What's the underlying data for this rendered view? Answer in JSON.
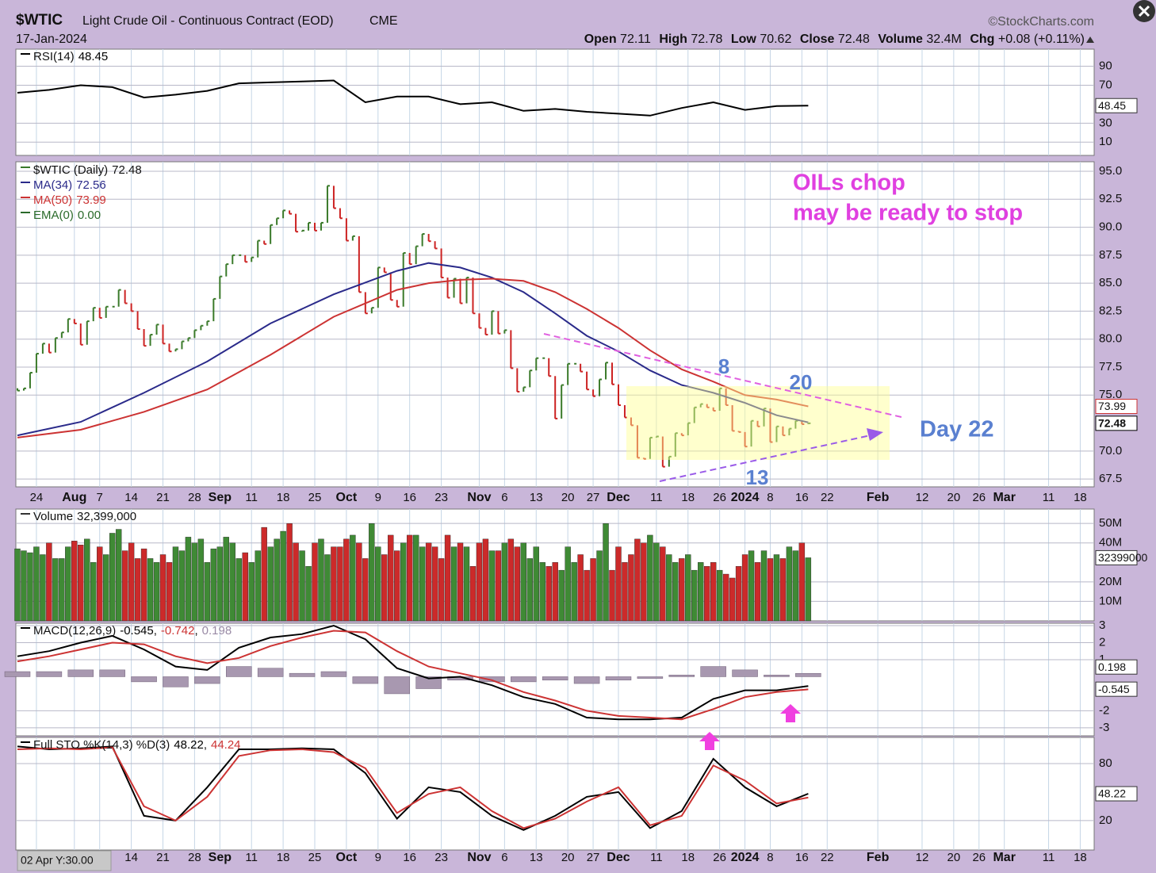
{
  "header": {
    "symbol": "$WTIC",
    "name": "Light Crude Oil - Continuous Contract (EOD)",
    "exchange": "CME",
    "date": "17-Jan-2024",
    "source": "©StockCharts.com",
    "open_label": "Open",
    "open": 72.11,
    "high_label": "High",
    "high": 72.78,
    "low_label": "Low",
    "low": 70.62,
    "close_label": "Close",
    "close": 72.48,
    "volume_label": "Volume",
    "volume": "32.4M",
    "chg_label": "Chg",
    "chg": "+0.08 (+0.11%)"
  },
  "footer": "02 Apr Y:30.00",
  "chart_data": [
    {
      "type": "line",
      "legend": "RSI(14)",
      "ylim": [
        -4,
        108
      ],
      "yticks": [
        90,
        70,
        30,
        10
      ],
      "x": [
        0,
        5,
        10,
        15,
        20,
        25,
        30,
        35,
        40,
        45,
        50,
        55,
        60,
        65,
        70,
        75,
        80,
        85,
        90,
        95,
        100,
        105,
        110,
        115,
        120,
        125
      ],
      "series": [
        {
          "color": "#000000",
          "values": [
            62,
            65,
            70,
            68,
            57,
            60,
            64,
            72,
            73,
            74,
            75,
            52,
            58,
            58,
            50,
            52,
            43,
            45,
            42,
            40,
            38,
            46,
            52,
            44,
            48,
            48.45
          ]
        }
      ]
    },
    {
      "type": "price",
      "legend": "$WTIC (Daily)",
      "ylim": [
        66.8,
        95.85
      ],
      "yticks": [
        {
          "value": 95,
          "label": "95.0"
        },
        {
          "value": 92.5,
          "label": "92.5"
        },
        {
          "value": 90,
          "label": "90.0"
        },
        {
          "value": 87.5,
          "label": "87.5"
        },
        {
          "value": 85,
          "label": "85.0"
        },
        {
          "value": 82.5,
          "label": "82.5"
        },
        {
          "value": 80,
          "label": "80.0"
        },
        {
          "value": 77.5,
          "label": "77.5"
        },
        {
          "value": 75,
          "label": "75.0"
        },
        {
          "value": 70,
          "label": "70.0"
        },
        {
          "value": 67.5,
          "label": "67.5"
        }
      ],
      "xlim": [
        -0.25,
        170.2
      ],
      "xticks": [
        {
          "value": 3,
          "label": "24"
        },
        {
          "value": 9,
          "label": "Aug"
        },
        {
          "value": 13,
          "label": "7"
        },
        {
          "value": 18,
          "label": "14"
        },
        {
          "value": 23,
          "label": "21"
        },
        {
          "value": 28,
          "label": "28"
        },
        {
          "value": 32,
          "label": "Sep"
        },
        {
          "value": 37,
          "label": "11"
        },
        {
          "value": 42,
          "label": "18"
        },
        {
          "value": 47,
          "label": "25"
        },
        {
          "value": 52,
          "label": "Oct"
        },
        {
          "value": 57,
          "label": "9"
        },
        {
          "value": 62,
          "label": "16"
        },
        {
          "value": 67,
          "label": "23"
        },
        {
          "value": 73,
          "label": "Nov"
        },
        {
          "value": 77,
          "label": "6"
        },
        {
          "value": 82,
          "label": "13"
        },
        {
          "value": 87,
          "label": "20"
        },
        {
          "value": 91,
          "label": "27"
        },
        {
          "value": 95,
          "label": "Dec"
        },
        {
          "value": 101,
          "label": "11"
        },
        {
          "value": 106,
          "label": "18"
        },
        {
          "value": 111,
          "label": "26"
        },
        {
          "value": 115,
          "label": "2024"
        },
        {
          "value": 119,
          "label": "8"
        },
        {
          "value": 124,
          "label": "16"
        },
        {
          "value": 128,
          "label": "22"
        },
        {
          "value": 136,
          "label": "Feb"
        },
        {
          "value": 143,
          "label": "12"
        },
        {
          "value": 148,
          "label": "20"
        },
        {
          "value": 152,
          "label": "26"
        },
        {
          "value": 156,
          "label": "Mar"
        },
        {
          "value": 163,
          "label": "11"
        },
        {
          "value": 168,
          "label": "18"
        }
      ],
      "close": {
        "name": "$WTIC (Daily)",
        "up_color": "#3a7a2a",
        "down_color": "#cc2222",
        "values": [
          75.4,
          75.6,
          77.0,
          78.7,
          79.6,
          78.8,
          80.1,
          80.6,
          81.8,
          81.4,
          79.5,
          81.6,
          82.8,
          81.9,
          82.9,
          82.9,
          84.4,
          83.2,
          82.5,
          80.9,
          79.4,
          80.4,
          81.3,
          79.6,
          78.9,
          79.1,
          79.8,
          80.1,
          80.8,
          81.2,
          81.6,
          83.6,
          85.6,
          86.7,
          87.5,
          87.5,
          86.9,
          87.3,
          88.8,
          88.5,
          90.2,
          90.8,
          91.5,
          91.2,
          89.6,
          89.7,
          90.4,
          89.7,
          90.4,
          93.7,
          91.7,
          90.8,
          88.8,
          89.2,
          84.2,
          82.3,
          82.8,
          86.4,
          85.97,
          83.5,
          82.9,
          87.7,
          86.7,
          88.3,
          89.4,
          88.75,
          88.1,
          85.5,
          83.7,
          85.4,
          83.2,
          85.5,
          82.3,
          81.0,
          80.4,
          82.5,
          80.5,
          80.8,
          77.4,
          75.3,
          75.7,
          77.2,
          78.3,
          78.3,
          76.7,
          72.9,
          75.9,
          77.8,
          77.8,
          77.1,
          75.5,
          74.9,
          76.4,
          77.9,
          75.96,
          74.1,
          73.0,
          72.3,
          69.4,
          69.3,
          71.2,
          71.3,
          68.6,
          69.5,
          71.6,
          71.4,
          72.5,
          73.9,
          74.2,
          73.9,
          73.6,
          75.6,
          74.1,
          71.8,
          71.7,
          70.4,
          72.7,
          72.2,
          73.8,
          70.8,
          72.2,
          71.4,
          72.0,
          72.7,
          72.4,
          72.48
        ]
      },
      "series": [
        {
          "name": "MA(34)",
          "color": "#2a2a8a",
          "x": [
            0,
            10,
            20,
            30,
            40,
            50,
            60,
            65,
            70,
            75,
            80,
            85,
            90,
            95,
            100,
            105,
            110,
            115,
            120,
            125
          ],
          "values": [
            71.4,
            72.6,
            75.2,
            78.0,
            81.4,
            84.0,
            86.1,
            86.8,
            86.4,
            85.5,
            84.2,
            82.3,
            80.3,
            78.9,
            77.2,
            75.9,
            75.2,
            74.3,
            73.2,
            72.56
          ]
        },
        {
          "name": "MA(50)",
          "color": "#cc3333",
          "x": [
            0,
            10,
            20,
            30,
            40,
            50,
            60,
            65,
            70,
            75,
            80,
            85,
            90,
            95,
            100,
            105,
            110,
            115,
            120,
            125
          ],
          "values": [
            71.2,
            71.9,
            73.5,
            75.5,
            78.6,
            82.0,
            84.4,
            85.0,
            85.3,
            85.4,
            85.2,
            84.2,
            82.7,
            81.0,
            79.0,
            77.3,
            76.2,
            75.0,
            74.6,
            73.99
          ]
        }
      ],
      "ema": {
        "name": "EMA(0)",
        "label": "0.00",
        "color": "#2a6a2a"
      },
      "annotations": [
        "OILs chop",
        "may be ready to stop",
        "8",
        "20",
        "13",
        "Day 22"
      ]
    },
    {
      "type": "bar",
      "legend": "Volume",
      "legend_value": "32,399,000",
      "box_label": "32399000",
      "ylim": [
        0,
        57.4
      ],
      "yticks": [
        {
          "value": 50,
          "label": "50M"
        },
        {
          "value": 40,
          "label": "40M"
        },
        {
          "value": 20,
          "label": "20M"
        },
        {
          "value": 10,
          "label": "10M"
        }
      ],
      "values": [
        37,
        36,
        35,
        38,
        34,
        40,
        32,
        32,
        38,
        41,
        39,
        42,
        30,
        38,
        34,
        45,
        47,
        36,
        40,
        32,
        37,
        32,
        30,
        34,
        30,
        38,
        36,
        43,
        40,
        42,
        30,
        37,
        38,
        43,
        40,
        32,
        35,
        30,
        36,
        48,
        38,
        42,
        46,
        50,
        40,
        36,
        28,
        40,
        42,
        34,
        38,
        38,
        42,
        44,
        40,
        32,
        50,
        38,
        34,
        44,
        36,
        40,
        44,
        44,
        38,
        40,
        38,
        32,
        44,
        38,
        40,
        38,
        28,
        40,
        42,
        36,
        36,
        40,
        42,
        38,
        40,
        32,
        38,
        30,
        28,
        30,
        26,
        38,
        30,
        34,
        26,
        32,
        36,
        50,
        26,
        38,
        30,
        34,
        42,
        40,
        44,
        40,
        38,
        34,
        30,
        32,
        34,
        26,
        30,
        28,
        30,
        26,
        24,
        22,
        28,
        34,
        36,
        30,
        36,
        32,
        34,
        32,
        38,
        36,
        40,
        32.399
      ]
    },
    {
      "type": "macd",
      "legend": "MACD(12,26,9)",
      "ylim": [
        -3.47,
        3.14
      ],
      "yticks": [
        3,
        2,
        1,
        -2,
        -3
      ],
      "x": [
        0,
        5,
        10,
        15,
        20,
        25,
        30,
        35,
        40,
        45,
        50,
        55,
        60,
        65,
        70,
        75,
        80,
        85,
        90,
        95,
        100,
        105,
        110,
        115,
        120,
        125
      ],
      "series": [
        {
          "color": "#000000",
          "values": [
            1.2,
            1.5,
            2.0,
            2.4,
            1.6,
            0.6,
            0.4,
            1.7,
            2.3,
            2.5,
            3.0,
            2.2,
            0.5,
            -0.1,
            0.0,
            -0.5,
            -1.2,
            -1.6,
            -2.4,
            -2.5,
            -2.5,
            -2.4,
            -1.3,
            -0.8,
            -0.8,
            -0.545
          ]
        },
        {
          "color": "#cc3333",
          "values": [
            0.9,
            1.2,
            1.6,
            2.0,
            1.9,
            1.2,
            0.8,
            1.1,
            1.8,
            2.3,
            2.7,
            2.6,
            1.5,
            0.6,
            0.2,
            -0.2,
            -0.9,
            -1.4,
            -2.0,
            -2.3,
            -2.4,
            -2.5,
            -1.9,
            -1.2,
            -0.9,
            -0.742
          ]
        }
      ],
      "histogram": {
        "color": "#a898b0",
        "values": [
          0.3,
          0.3,
          0.4,
          0.4,
          -0.3,
          -0.6,
          -0.4,
          0.6,
          0.5,
          0.2,
          0.3,
          -0.4,
          -1.0,
          -0.7,
          -0.2,
          -0.3,
          -0.3,
          -0.2,
          -0.4,
          -0.2,
          -0.1,
          0.1,
          0.6,
          0.4,
          0.1,
          0.198
        ]
      }
    },
    {
      "type": "line",
      "legend": "Full STO %K(14,3) %D(3)",
      "ylim": [
        -11,
        107.5
      ],
      "yticks": [
        80,
        20
      ],
      "x": [
        0,
        5,
        10,
        15,
        20,
        25,
        30,
        35,
        40,
        45,
        50,
        55,
        60,
        65,
        70,
        75,
        80,
        85,
        90,
        95,
        100,
        105,
        110,
        115,
        120,
        125
      ],
      "series": [
        {
          "color": "#000000",
          "values": [
            98,
            95,
            96,
            98,
            25,
            20,
            55,
            95,
            95,
            96,
            95,
            70,
            22,
            55,
            50,
            25,
            10,
            25,
            45,
            50,
            12,
            30,
            85,
            55,
            35,
            48.22
          ]
        },
        {
          "color": "#cc3333",
          "values": [
            95,
            96,
            95,
            97,
            35,
            20,
            45,
            88,
            94,
            95,
            92,
            75,
            28,
            48,
            55,
            30,
            12,
            22,
            40,
            55,
            15,
            25,
            78,
            62,
            38,
            44.24
          ]
        }
      ]
    }
  ]
}
